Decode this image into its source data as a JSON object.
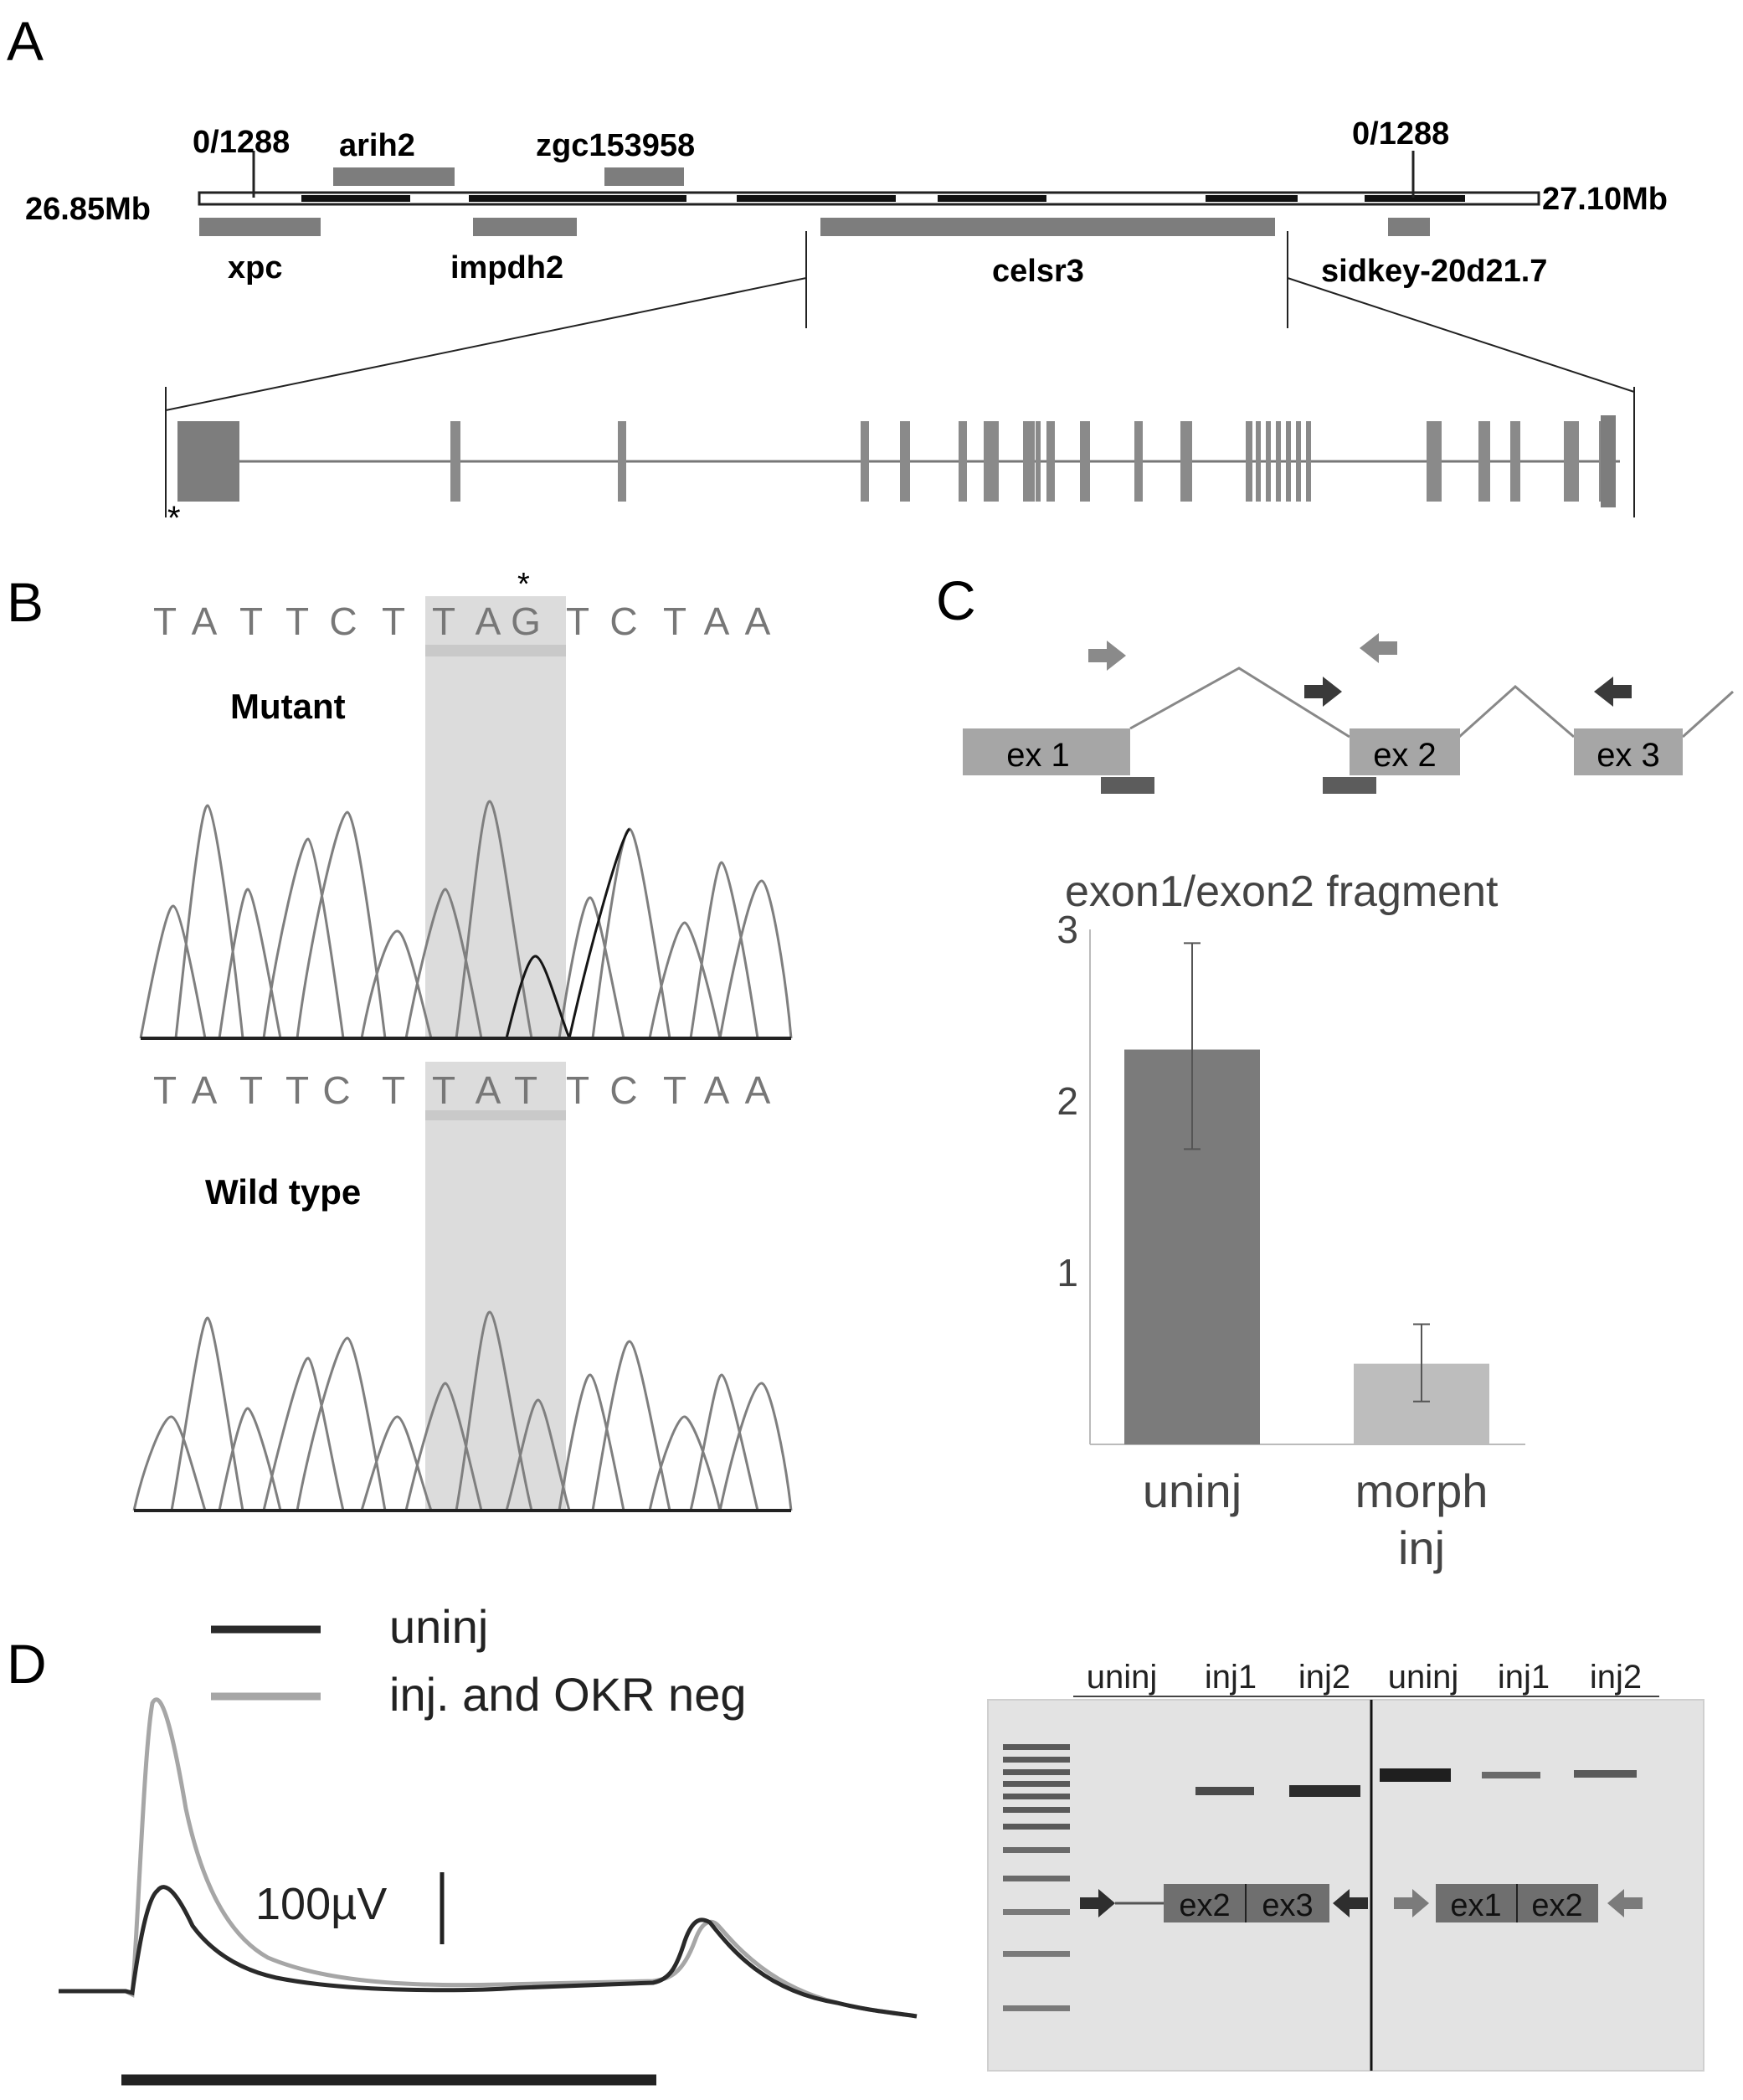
{
  "panels": {
    "a": {
      "letter": "A",
      "scale_left": "26.85Mb",
      "scale_right": "27.10Mb",
      "marker_left": "0/1288",
      "marker_right": "0/1288",
      "genes_top": [
        "arih2",
        "zgc153958"
      ],
      "genes_bottom": [
        "xpc",
        "impdh2",
        "celsr3",
        "sidkey-20d21.7"
      ],
      "exon_star": "*"
    },
    "b": {
      "letter": "B",
      "mutant": {
        "label": "Mutant",
        "sequence": [
          "T",
          "A",
          "T",
          "T",
          "C",
          "T",
          "T",
          "A",
          "G",
          "T",
          "C",
          "T",
          "A",
          "A"
        ],
        "star": "*"
      },
      "wildtype": {
        "label": "Wild type",
        "sequence": [
          "T",
          "A",
          "T",
          "T",
          "C",
          "T",
          "T",
          "A",
          "T",
          "T",
          "C",
          "T",
          "A",
          "A"
        ]
      }
    },
    "c": {
      "letter": "C",
      "exons": [
        "ex 1",
        "ex 2",
        "ex 3"
      ],
      "chart_data": {
        "type": "bar",
        "title": "exon1/exon2 fragment",
        "categories": [
          "uninj",
          "morph inj"
        ],
        "category_lines": [
          [
            "uninj"
          ],
          [
            "morph",
            "inj"
          ]
        ],
        "values": [
          2.3,
          0.47
        ],
        "errors_low": [
          1.72,
          0.25
        ],
        "errors_high": [
          2.92,
          0.7
        ],
        "bar_colors": [
          "#7b7b7b",
          "#bdbdbd"
        ],
        "yticks": [
          "1",
          "2",
          "3"
        ],
        "ytick_values": [
          1,
          2,
          3
        ],
        "ylim": [
          0,
          3
        ],
        "xlabel": "",
        "ylabel": ""
      }
    },
    "d": {
      "letter": "D",
      "legend": [
        {
          "label": "uninj",
          "color": "#2a2a2a"
        },
        {
          "label": "inj. and OKR neg",
          "color": "#a6a6a6"
        }
      ],
      "scale_bar_label": "100µV",
      "gel": {
        "lane_labels": [
          "uninj",
          "inj1",
          "inj2",
          "uninj",
          "inj1",
          "inj2"
        ],
        "fragment_left": [
          "ex2",
          "ex3"
        ],
        "fragment_right": [
          "ex1",
          "ex2"
        ]
      }
    }
  }
}
